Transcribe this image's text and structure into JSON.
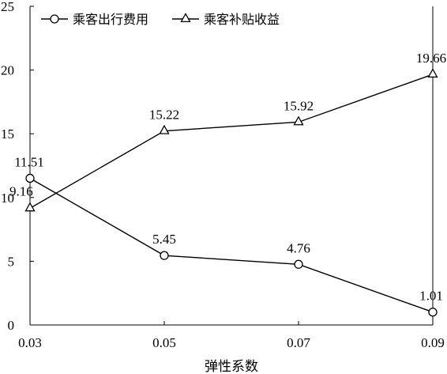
{
  "chart_data": {
    "type": "line",
    "title": "",
    "xlabel": "弹性系数",
    "ylabel": "",
    "x": [
      0.03,
      0.05,
      0.07,
      0.09
    ],
    "x_tick_labels": [
      "0.03",
      "0.05",
      "0.07",
      "0.09"
    ],
    "ylim": [
      0,
      25
    ],
    "y_ticks": [
      0,
      5,
      10,
      15,
      20,
      25
    ],
    "y_tick_labels": [
      "0",
      "5",
      "10",
      "15",
      "20",
      "25"
    ],
    "grid": false,
    "legend_position": "top-left",
    "series": [
      {
        "name": "乘客出行费用",
        "marker": "circle",
        "values": [
          11.51,
          5.45,
          4.76,
          1.01
        ],
        "labels": [
          "11.51",
          "5.45",
          "4.76",
          "1.01"
        ]
      },
      {
        "name": "乘客补贴收益",
        "marker": "triangle",
        "values": [
          9.16,
          15.22,
          15.92,
          19.66
        ],
        "labels": [
          "9.16",
          "15.22",
          "15.92",
          "19.66"
        ]
      }
    ],
    "colors": {
      "line": "#000000",
      "marker_fill": "#ffffff"
    }
  }
}
